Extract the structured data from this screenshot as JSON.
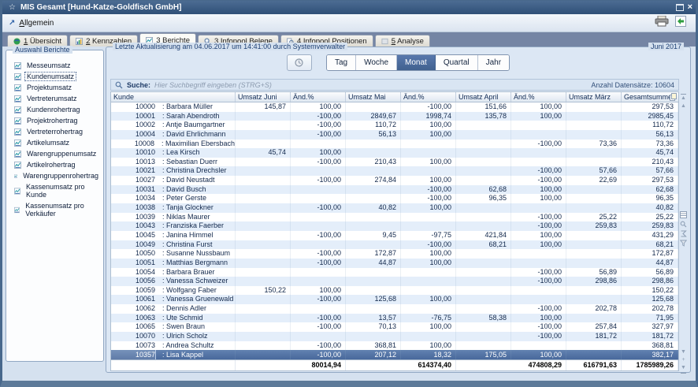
{
  "window": {
    "title": "MIS Gesamt  [Hund-Katze-Goldfisch GmbH]"
  },
  "icons": {
    "star": "☆",
    "menu_arrow": "↗",
    "close": "×",
    "scroll_up": "▲",
    "scroll_down": "▼",
    "plus": "+"
  },
  "menubar": {
    "menu_label": "Allgemein"
  },
  "tabs": [
    {
      "label": "1 Übersicht",
      "active": false
    },
    {
      "label": "2 Kennzahlen",
      "active": false
    },
    {
      "label": "3 Berichte",
      "active": true
    },
    {
      "label": "3 Infopool Belege",
      "active": false
    },
    {
      "label": "4 Infopool Positionen",
      "active": false
    },
    {
      "label": "5 Analyse",
      "active": false
    }
  ],
  "sidebar": {
    "title": "Auswahl Berichte",
    "selected_index": 1,
    "items": [
      "Messeumsatz",
      "Kundenumsatz",
      "Projektumsatz",
      "Vertreterumsatz",
      "Kundenrohertrag",
      "Projektrohertrag",
      "Vertreterrohertrag",
      "Artikelumsatz",
      "Warengruppenumsatz",
      "Artikelrohertrag",
      "Warengruppenrohertrag",
      "Kassenumsatz pro Kunde",
      "Kassenumsatz pro Verkäufer"
    ]
  },
  "main": {
    "group_title": "Letzte Aktualisierung am 04.06.2017 um 14:41:00 durch Systemverwalter",
    "period_label": "Juni 2017",
    "periods": {
      "options": [
        "Tag",
        "Woche",
        "Monat",
        "Quartal",
        "Jahr"
      ],
      "active": "Monat"
    },
    "search": {
      "label": "Suche:",
      "placeholder": "Hier Suchbegriff eingeben (STRG+S)",
      "count": "Anzahl Datensätze: 10604"
    },
    "table": {
      "columns": [
        "Kunde",
        "Umsatz Juni",
        "Änd.%",
        "Umsatz Mai",
        "Änd.%",
        "Umsatz April",
        "Änd.%",
        "Umsatz März",
        "Gesamtsumme"
      ],
      "rows": [
        {
          "id": "10000",
          "name": "Barbara Müller",
          "v": [
            "145,87",
            "100,00",
            "",
            "-100,00",
            "151,66",
            "100,00",
            "",
            "297,53"
          ]
        },
        {
          "id": "10001",
          "name": "Sarah Abendroth",
          "v": [
            "",
            "-100,00",
            "2849,67",
            "1998,74",
            "135,78",
            "100,00",
            "",
            "2985,45"
          ]
        },
        {
          "id": "10002",
          "name": "Antje Baumgartner",
          "v": [
            "",
            "-100,00",
            "110,72",
            "100,00",
            "",
            "",
            "",
            "110,72"
          ]
        },
        {
          "id": "10004",
          "name": "David Ehrlichmann",
          "v": [
            "",
            "-100,00",
            "56,13",
            "100,00",
            "",
            "",
            "",
            "56,13"
          ]
        },
        {
          "id": "10008",
          "name": "Maximilian Ebersbach",
          "v": [
            "",
            "",
            "",
            "",
            "",
            "-100,00",
            "73,36",
            "73,36"
          ]
        },
        {
          "id": "10010",
          "name": "Lea Kirsch",
          "v": [
            "45,74",
            "100,00",
            "",
            "",
            "",
            "",
            "",
            "45,74"
          ]
        },
        {
          "id": "10013",
          "name": "Sebastian Duerr",
          "v": [
            "",
            "-100,00",
            "210,43",
            "100,00",
            "",
            "",
            "",
            "210,43"
          ]
        },
        {
          "id": "10021",
          "name": "Christina Drechsler",
          "v": [
            "",
            "",
            "",
            "",
            "",
            "-100,00",
            "57,66",
            "57,66"
          ]
        },
        {
          "id": "10027",
          "name": "David Neustadt",
          "v": [
            "",
            "-100,00",
            "274,84",
            "100,00",
            "",
            "-100,00",
            "22,69",
            "297,53"
          ]
        },
        {
          "id": "10031",
          "name": "David Busch",
          "v": [
            "",
            "",
            "",
            "-100,00",
            "62,68",
            "100,00",
            "",
            "62,68"
          ]
        },
        {
          "id": "10034",
          "name": "Peter Gerste",
          "v": [
            "",
            "",
            "",
            "-100,00",
            "96,35",
            "100,00",
            "",
            "96,35"
          ]
        },
        {
          "id": "10038",
          "name": "Tanja Glockner",
          "v": [
            "",
            "-100,00",
            "40,82",
            "100,00",
            "",
            "",
            "",
            "40,82"
          ]
        },
        {
          "id": "10039",
          "name": "Niklas Maurer",
          "v": [
            "",
            "",
            "",
            "",
            "",
            "-100,00",
            "25,22",
            "25,22"
          ]
        },
        {
          "id": "10043",
          "name": "Franziska Faerber",
          "v": [
            "",
            "",
            "",
            "",
            "",
            "-100,00",
            "259,83",
            "259,83"
          ]
        },
        {
          "id": "10045",
          "name": "Janina Himmel",
          "v": [
            "",
            "-100,00",
            "9,45",
            "-97,75",
            "421,84",
            "100,00",
            "",
            "431,29"
          ]
        },
        {
          "id": "10049",
          "name": "Christina Furst",
          "v": [
            "",
            "",
            "",
            "-100,00",
            "68,21",
            "100,00",
            "",
            "68,21"
          ]
        },
        {
          "id": "10050",
          "name": "Susanne Nussbaum",
          "v": [
            "",
            "-100,00",
            "172,87",
            "100,00",
            "",
            "",
            "",
            "172,87"
          ]
        },
        {
          "id": "10051",
          "name": "Matthias Bergmann",
          "v": [
            "",
            "-100,00",
            "44,87",
            "100,00",
            "",
            "",
            "",
            "44,87"
          ]
        },
        {
          "id": "10054",
          "name": "Barbara Brauer",
          "v": [
            "",
            "",
            "",
            "",
            "",
            "-100,00",
            "56,89",
            "56,89"
          ]
        },
        {
          "id": "10056",
          "name": "Vanessa Schweizer",
          "v": [
            "",
            "",
            "",
            "",
            "",
            "-100,00",
            "298,86",
            "298,86"
          ]
        },
        {
          "id": "10059",
          "name": "Wolfgang Faber",
          "v": [
            "150,22",
            "100,00",
            "",
            "",
            "",
            "",
            "",
            "150,22"
          ]
        },
        {
          "id": "10061",
          "name": "Vanessa Gruenewald",
          "v": [
            "",
            "-100,00",
            "125,68",
            "100,00",
            "",
            "",
            "",
            "125,68"
          ]
        },
        {
          "id": "10062",
          "name": "Dennis Adler",
          "v": [
            "",
            "",
            "",
            "",
            "",
            "-100,00",
            "202,78",
            "202,78"
          ]
        },
        {
          "id": "10063",
          "name": "Ute Schmid",
          "v": [
            "",
            "-100,00",
            "13,57",
            "-76,75",
            "58,38",
            "100,00",
            "",
            "71,95"
          ]
        },
        {
          "id": "10065",
          "name": "Swen Braun",
          "v": [
            "",
            "-100,00",
            "70,13",
            "100,00",
            "",
            "-100,00",
            "257,84",
            "327,97"
          ]
        },
        {
          "id": "10070",
          "name": "Ulrich Scholz",
          "v": [
            "",
            "",
            "",
            "",
            "",
            "-100,00",
            "181,72",
            "181,72"
          ]
        },
        {
          "id": "10073",
          "name": "Andrea Schultz",
          "v": [
            "",
            "-100,00",
            "368,81",
            "100,00",
            "",
            "",
            "",
            "368,81"
          ]
        }
      ],
      "selected": {
        "id": "10357",
        "name": "Lisa Kappel",
        "v": [
          "",
          "-100,00",
          "207,12",
          "18,32",
          "175,05",
          "100,00",
          "",
          "382,17"
        ]
      },
      "totals": {
        "juni": "80014,94",
        "mai": "614374,40",
        "april": "474808,29",
        "maerz": "616791,63",
        "gesamt": "1785989,26"
      }
    }
  }
}
